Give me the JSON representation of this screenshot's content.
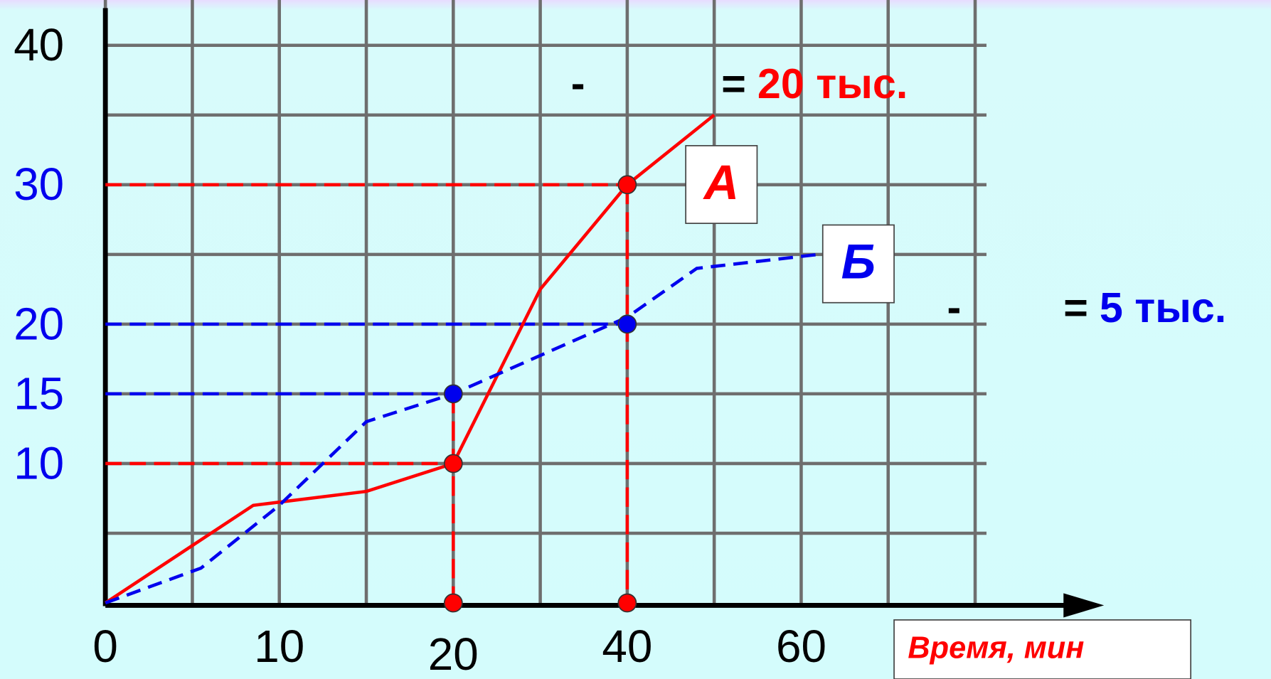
{
  "chart_data": {
    "type": "line",
    "xlim": [
      0,
      10
    ],
    "ylim": [
      0,
      8
    ],
    "xticks": [
      0,
      {
        "value": 2,
        "label": "10"
      },
      {
        "value": 4,
        "label": "20"
      },
      {
        "value": 6,
        "label": "40"
      },
      {
        "value": 8,
        "label": "60"
      }
    ],
    "yticks": [
      {
        "value": 2,
        "label": "10"
      },
      {
        "value": 3,
        "label": "15"
      },
      {
        "value": 4,
        "label": "20"
      },
      {
        "value": 6,
        "label": "30"
      },
      {
        "value": 8,
        "label": "40"
      }
    ],
    "ytick_colors": [
      "#0000ee",
      "#0000ee",
      "#0000ee",
      "#0000ee",
      "#000000"
    ],
    "grid": true,
    "x_label": "Время, мин",
    "series": [
      {
        "name": "А",
        "color": "#ff0000",
        "dash": false,
        "x": [
          0,
          1.7,
          3,
          4,
          5,
          6,
          7
        ],
        "values": [
          0,
          1.4,
          1.6,
          2,
          4.5,
          6,
          7
        ]
      },
      {
        "name": "Б",
        "color": "#0000ee",
        "dash": true,
        "x": [
          0,
          1.1,
          2,
          3,
          4,
          6,
          6.8,
          8.2
        ],
        "values": [
          0,
          0.5,
          1.4,
          2.6,
          3,
          4.1,
          4.8,
          5
        ]
      }
    ],
    "markers": [
      {
        "x": 4,
        "y": 2,
        "color": "#ff0000"
      },
      {
        "x": 6,
        "y": 6,
        "color": "#ff0000"
      },
      {
        "x": 4,
        "y": 3,
        "color": "#0000ee"
      },
      {
        "x": 6,
        "y": 4,
        "color": "#0000ee"
      },
      {
        "x": 4,
        "y": 0,
        "color": "#ff0000"
      },
      {
        "x": 6,
        "y": 0,
        "color": "#ff0000"
      }
    ],
    "legend": [
      {
        "dash": "-",
        "eq": "=",
        "text": "20 тыс.",
        "color": "#ff0000"
      },
      {
        "dash": "-",
        "eq": "=",
        "text": "5 тыс.",
        "color": "#0000ee"
      }
    ]
  }
}
